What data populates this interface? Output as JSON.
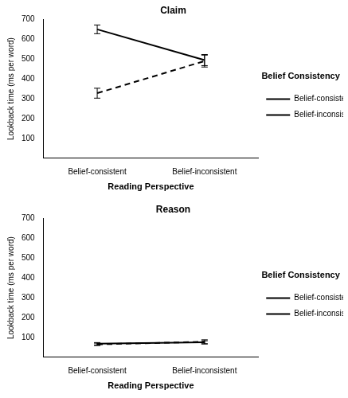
{
  "chart_data": [
    {
      "type": "line",
      "title": "Claim",
      "x_label": "Reading Perspective",
      "y_label": "Lookback time (ms per word)",
      "categories": [
        "Belief-consistent",
        "Belief-inconsistent"
      ],
      "series": [
        {
          "name": "Belief-consistent",
          "color": "#000000",
          "line_style": "solid",
          "values": [
            650,
            495
          ],
          "errors": [
            22,
            28
          ]
        },
        {
          "name": "Belief-inconsistent",
          "color": "#000000",
          "line_style": "dashed",
          "values": [
            328,
            490
          ],
          "errors": [
            25,
            30
          ]
        }
      ],
      "ylim": [
        0,
        700
      ],
      "yticks": [
        100,
        200,
        300,
        400,
        500,
        600,
        700
      ],
      "grid": false,
      "legend": "right",
      "legend_title": "Belief Consistency"
    },
    {
      "type": "line",
      "title": "Reason",
      "x_label": "Reading Perspective",
      "y_label": "Lookback time (ms per word)",
      "categories": [
        "Belief-consistent",
        "Belief-inconsistent"
      ],
      "series": [
        {
          "name": "Belief-consistent",
          "color": "#000000",
          "line_style": "solid",
          "values": [
            68,
            75
          ],
          "errors": [
            6,
            8
          ]
        },
        {
          "name": "Belief-inconsistent",
          "color": "#000000",
          "line_style": "dashed",
          "values": [
            65,
            78
          ],
          "errors": [
            6,
            10
          ]
        }
      ],
      "ylim": [
        0,
        700
      ],
      "yticks": [
        100,
        200,
        300,
        400,
        500,
        600,
        700
      ],
      "grid": false,
      "legend": "right",
      "legend_title": "Belief Consistency"
    }
  ]
}
